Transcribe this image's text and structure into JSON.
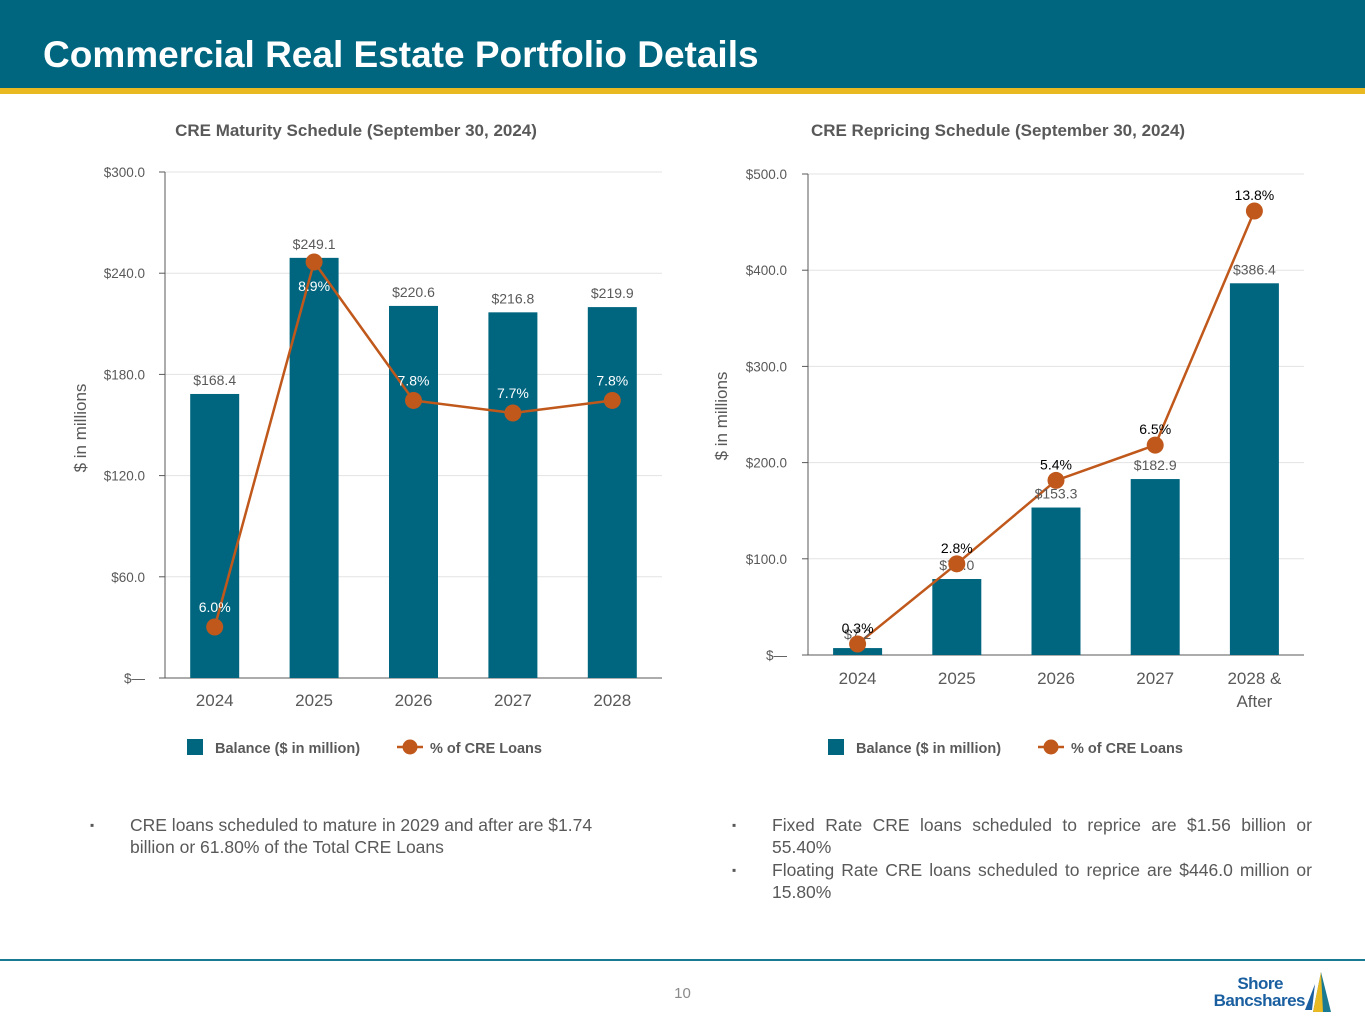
{
  "page": {
    "title": "Commercial Real Estate Portfolio Details",
    "page_number": "10",
    "logo": {
      "line1": "Shore",
      "line2": "Bancshares"
    },
    "colors": {
      "header": "#006680",
      "accent": "#e8b921",
      "bar": "#006680",
      "line": "#c0581b"
    }
  },
  "chart_data": [
    {
      "type": "bar",
      "title": "CRE Maturity Schedule (September 30, 2024)",
      "ylabel": "$ in millions",
      "categories": [
        "2024",
        "2025",
        "2026",
        "2027",
        "2028"
      ],
      "ylim": [
        0,
        300
      ],
      "yticks": [
        0,
        60,
        120,
        180,
        240,
        300
      ],
      "ytick_labels": [
        "$—",
        "$60.0",
        "$120.0",
        "$180.0",
        "$240.0",
        "$300.0"
      ],
      "series": [
        {
          "name": "Balance ($ in million)",
          "type": "bar",
          "values": [
            168.4,
            249.1,
            220.6,
            216.8,
            219.9
          ],
          "labels": [
            "$168.4",
            "$249.1",
            "$220.6",
            "$216.8",
            "$219.9"
          ]
        },
        {
          "name": "% of CRE Loans",
          "type": "line",
          "values": [
            6.0,
            8.9,
            7.8,
            7.7,
            7.8
          ],
          "labels": [
            "6.0%",
            "8.9%",
            "7.8%",
            "7.7%",
            "7.8%"
          ]
        }
      ],
      "legend": "bottom"
    },
    {
      "type": "bar",
      "title": "CRE Repricing Schedule (September 30, 2024)",
      "ylabel": "$ in millions",
      "categories": [
        "2024",
        "2025",
        "2026",
        "2027",
        "2028 & After"
      ],
      "ylim": [
        0,
        500
      ],
      "yticks": [
        0,
        100,
        200,
        300,
        400,
        500
      ],
      "ytick_labels": [
        "$—",
        "$100.0",
        "$200.0",
        "$300.0",
        "$400.0",
        "$500.0"
      ],
      "series": [
        {
          "name": "Balance ($ in million)",
          "type": "bar",
          "values": [
            7.2,
            79.0,
            153.3,
            182.9,
            386.4
          ],
          "labels": [
            "$7.2",
            "$79.0",
            "$153.3",
            "$182.9",
            "$386.4"
          ]
        },
        {
          "name": "% of CRE Loans",
          "type": "line",
          "values": [
            0.3,
            2.8,
            5.4,
            6.5,
            13.8
          ],
          "labels": [
            "0.3%",
            "2.8%",
            "5.4%",
            "6.5%",
            "13.8%"
          ]
        }
      ],
      "legend": "bottom"
    }
  ],
  "notes": {
    "left": [
      "CRE loans scheduled to mature in 2029 and after are $1.74 billion or 61.80% of the Total CRE Loans"
    ],
    "right": [
      "Fixed Rate CRE loans scheduled to reprice are $1.56 billion or 55.40%",
      "Floating Rate CRE loans scheduled to reprice are $446.0 million or 15.80%"
    ]
  }
}
